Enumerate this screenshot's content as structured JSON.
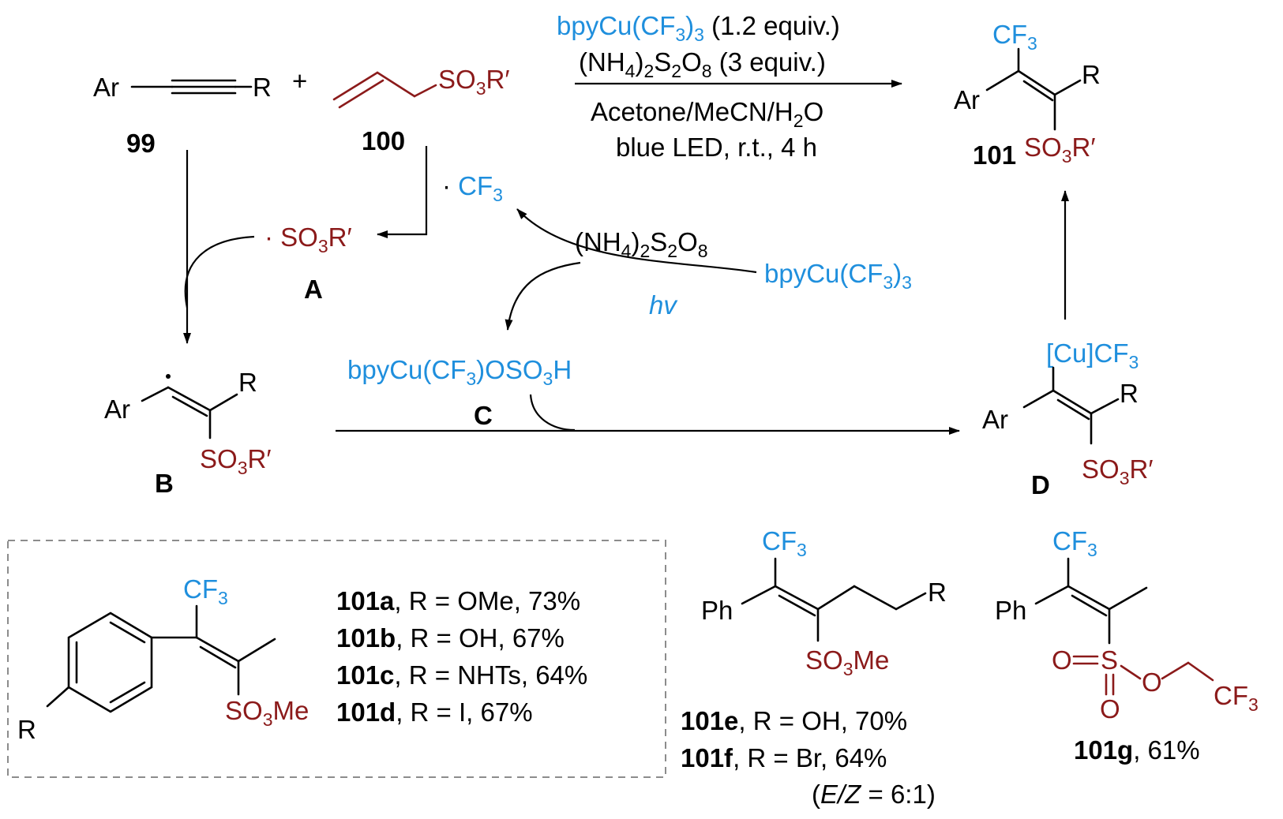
{
  "reagents": {
    "catalyst": "bpyCu(CF3)3",
    "catalyst_equiv": "(1.2 equiv.)",
    "oxidant": "(NH4)2S2O8",
    "oxidant_equiv": "(3 equiv.)",
    "solvent": "Acetone/MeCN/H2O",
    "conditions": "blue LED, r.t., 4 h"
  },
  "labels": {
    "c99": "99",
    "c100": "100",
    "c101": "101",
    "A": "A",
    "B": "B",
    "C": "C",
    "D": "D"
  },
  "atoms": {
    "Ar": "Ar",
    "R": "R",
    "R_prime": "R′",
    "plus": "+",
    "hv": "hv",
    "Ph": "Ph",
    "O": "O",
    "S": "S",
    "CF3": "CF3",
    "cu_cf3": "[Cu]CF3",
    "so3r": "SO3R′",
    "so3me": "SO3Me",
    "cf3_radical": "· CF3",
    "so3r_radical": "· SO3R′",
    "intermediate_C": "bpyCu(CF3)OSO3H"
  },
  "examples": {
    "boxed": [
      {
        "id": "101a",
        "text": ", R = OMe, 73%"
      },
      {
        "id": "101b",
        "text": ", R = OH, 67%"
      },
      {
        "id": "101c",
        "text": ", R = NHTs, 64%"
      },
      {
        "id": "101d",
        "text": ", R = I, 67%"
      }
    ],
    "e": {
      "id": "101e",
      "text": ", R = OH, 70%"
    },
    "f": {
      "id": "101f",
      "text": ", R = Br, 64%"
    },
    "ez": {
      "open": "(",
      "label": "E/Z",
      "ratio": " = 6:1)"
    },
    "g": {
      "id": "101g",
      "text": ", 61%"
    }
  },
  "colors": {
    "reagent_blue": "#1f8fdd",
    "sulfonate_red": "#8b1a1a"
  }
}
